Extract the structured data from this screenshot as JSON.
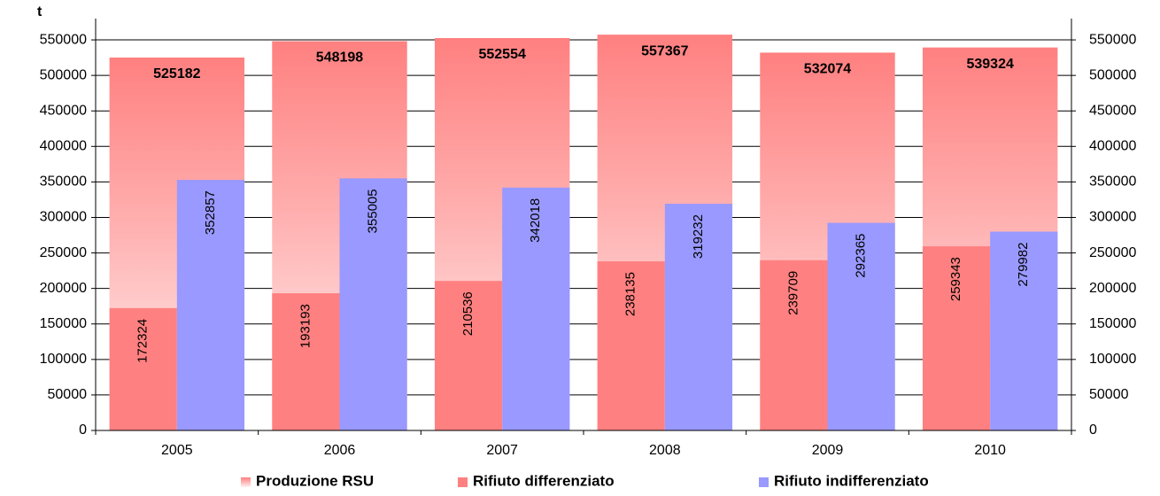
{
  "chart_data": {
    "type": "bar",
    "y_label": "t",
    "categories": [
      "2005",
      "2006",
      "2007",
      "2008",
      "2009",
      "2010"
    ],
    "series": [
      {
        "name": "Produzione RSU",
        "color": "#ff8080",
        "values": [
          525182,
          548198,
          552554,
          557367,
          532074,
          539324
        ]
      },
      {
        "name": "Rifiuto differenziato",
        "color": "#ff8080",
        "values": [
          172324,
          193193,
          210536,
          238135,
          239709,
          259343
        ]
      },
      {
        "name": "Rifiuto indifferenziato",
        "color": "#9999ff",
        "values": [
          352857,
          355005,
          342018,
          319232,
          292365,
          279982
        ]
      }
    ],
    "ylim": [
      0,
      580000
    ],
    "yticks": [
      0,
      50000,
      100000,
      150000,
      200000,
      250000,
      300000,
      350000,
      400000,
      450000,
      500000,
      550000
    ],
    "y2lim": [
      0,
      580000
    ],
    "y2ticks": [
      0,
      50000,
      100000,
      150000,
      200000,
      250000,
      300000,
      350000,
      400000,
      450000,
      500000,
      550000
    ],
    "grid": true,
    "legend": "bottom"
  }
}
